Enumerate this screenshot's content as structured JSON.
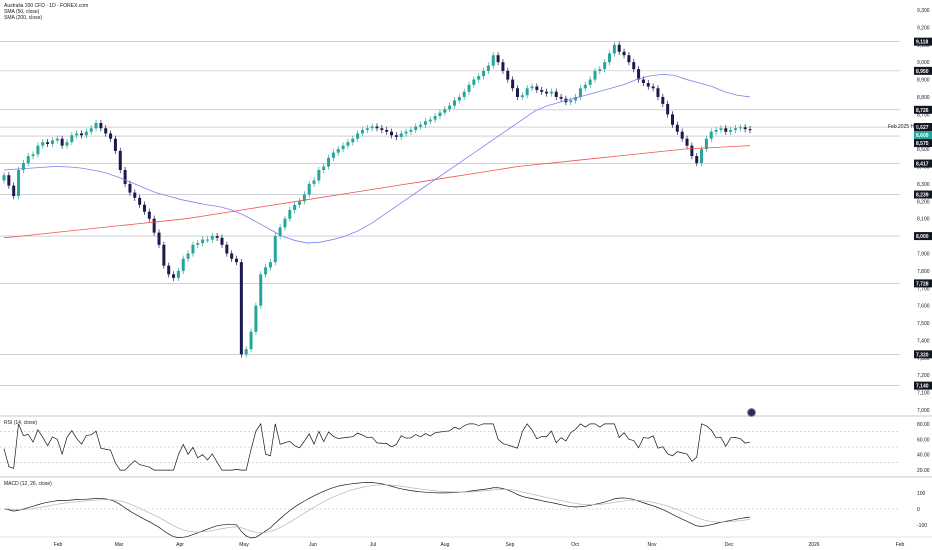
{
  "legend": {
    "title": "Australia 200 CFD · 1D · FOREX.com",
    "sma50": "SMA (50, close)",
    "sma200": "SMA (200, close)",
    "rsi": "RSI (14, close)",
    "macd": "MACD (12, 26, close)"
  },
  "annotation": "Feb 2025 High",
  "colors": {
    "up": "#26a69a",
    "down": "#1a1a4e",
    "sma50": "#7b83eb",
    "sma200": "#ef5350",
    "level": "#b2b5be",
    "badge": "#131722"
  },
  "chart_data": {
    "type": "candlestick",
    "price_axis": {
      "range": [
        7000,
        9300
      ],
      "ticks": [
        "9,300",
        "9,200",
        "9,100",
        "9,000",
        "8,900",
        "8,800",
        "8,700",
        "8,600",
        "8,500",
        "8,400",
        "8,300",
        "8,200",
        "8,100",
        "8,000",
        "7,900",
        "7,800",
        "7,700",
        "7,600",
        "7,500",
        "7,400",
        "7,300",
        "7,200",
        "7,100",
        "7,000"
      ]
    },
    "price_labels": [
      "9,118",
      "8,950",
      "8,726",
      "8,627",
      "8,609",
      "8,575",
      "8,417",
      "8,239",
      "8,000",
      "7,728",
      "7,320",
      "7,140"
    ],
    "levels": [
      9118,
      8950,
      8726,
      8627,
      8575,
      8417,
      8239,
      8000,
      7728,
      7320,
      7140
    ],
    "x_labels": [
      "Feb",
      "Mar",
      "Apr",
      "May",
      "Jun",
      "Jul",
      "Aug",
      "Sep",
      "Oct",
      "Nov",
      "Dec",
      "2026",
      "Feb"
    ],
    "closes": [
      8350,
      8290,
      8230,
      8380,
      8420,
      8460,
      8470,
      8520,
      8540,
      8530,
      8550,
      8560,
      8520,
      8540,
      8580,
      8590,
      8580,
      8600,
      8620,
      8650,
      8620,
      8590,
      8560,
      8490,
      8380,
      8300,
      8250,
      8220,
      8180,
      8140,
      8100,
      8020,
      7950,
      7830,
      7780,
      7760,
      7800,
      7870,
      7900,
      7950,
      7960,
      7980,
      7980,
      8000,
      7990,
      7950,
      7900,
      7870,
      7850,
      7320,
      7350,
      7450,
      7600,
      7780,
      7820,
      7850,
      8000,
      8050,
      8100,
      8150,
      8180,
      8200,
      8240,
      8300,
      8320,
      8380,
      8400,
      8450,
      8480,
      8500,
      8520,
      8540,
      8560,
      8590,
      8610,
      8620,
      8630,
      8620,
      8610,
      8600,
      8580,
      8570,
      8590,
      8600,
      8610,
      8630,
      8640,
      8660,
      8670,
      8690,
      8710,
      8730,
      8750,
      8780,
      8800,
      8830,
      8870,
      8900,
      8920,
      8950,
      8980,
      9040,
      9000,
      8950,
      8900,
      8850,
      8800,
      8810,
      8850,
      8860,
      8840,
      8830,
      8820,
      8830,
      8800,
      8790,
      8770,
      8780,
      8800,
      8850,
      8870,
      8900,
      8950,
      8960,
      9000,
      9050,
      9100,
      9060,
      9040,
      9000,
      8960,
      8900,
      8880,
      8860,
      8850,
      8800,
      8760,
      8700,
      8640,
      8600,
      8560,
      8520,
      8460,
      8420,
      8500,
      8560,
      8600,
      8610,
      8620,
      8600,
      8610,
      8620,
      8625,
      8615,
      8609
    ],
    "sma50": [
      8380,
      8385,
      8390,
      8395,
      8400,
      8398,
      8392,
      8380,
      8365,
      8340,
      8310,
      8280,
      8250,
      8230,
      8210,
      8195,
      8180,
      8170,
      8150,
      8120,
      8080,
      8040,
      8000,
      7975,
      7960,
      7965,
      7980,
      8000,
      8030,
      8070,
      8120,
      8170,
      8220,
      8270,
      8320,
      8370,
      8420,
      8470,
      8520,
      8570,
      8620,
      8670,
      8720,
      8750,
      8770,
      8790,
      8810,
      8830,
      8850,
      8870,
      8900,
      8920,
      8930,
      8925,
      8900,
      8880,
      8860,
      8830,
      8810,
      8800
    ],
    "sma200": [
      7990,
      8000,
      8010,
      8020,
      8030,
      8040,
      8050,
      8060,
      8070,
      8080,
      8090,
      8100,
      8115,
      8130,
      8145,
      8160,
      8175,
      8190,
      8205,
      8220,
      8235,
      8250,
      8265,
      8280,
      8295,
      8310,
      8325,
      8340,
      8355,
      8370,
      8385,
      8400,
      8410,
      8420,
      8430,
      8440,
      8450,
      8460,
      8470,
      8480,
      8490,
      8500,
      8505,
      8510,
      8515,
      8520
    ],
    "rsi": {
      "ticks": [
        "80.00",
        "60.00",
        "40.00",
        "20.00"
      ],
      "range": [
        15,
        85
      ],
      "last": 55,
      "levels": [
        70,
        50,
        30
      ]
    },
    "macd": {
      "ticks": [
        "100",
        "0",
        "-100"
      ],
      "range": [
        -150,
        150
      ],
      "last": -40
    }
  }
}
